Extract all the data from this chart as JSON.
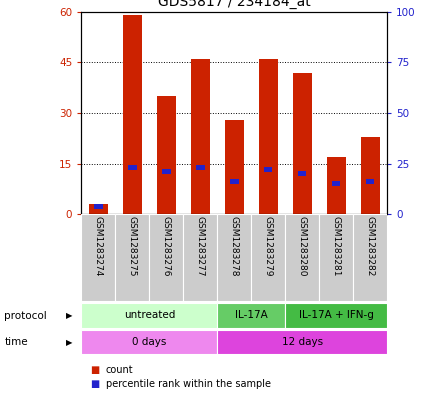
{
  "title": "GDS5817 / 234184_at",
  "samples": [
    "GSM1283274",
    "GSM1283275",
    "GSM1283276",
    "GSM1283277",
    "GSM1283278",
    "GSM1283279",
    "GSM1283280",
    "GSM1283281",
    "GSM1283282"
  ],
  "counts": [
    3,
    59,
    35,
    46,
    28,
    46,
    42,
    17,
    23
  ],
  "percentile_ranks": [
    4,
    23,
    21,
    23,
    16,
    22,
    20,
    15,
    16
  ],
  "ylim_left": [
    0,
    60
  ],
  "ylim_right": [
    0,
    100
  ],
  "yticks_left": [
    0,
    15,
    30,
    45,
    60
  ],
  "yticks_right": [
    0,
    25,
    50,
    75,
    100
  ],
  "bar_color": "#cc2200",
  "percentile_color": "#2222cc",
  "bar_width": 0.55,
  "protocol_groups": [
    {
      "label": "untreated",
      "samples": [
        0,
        1,
        2,
        3
      ],
      "color": "#ccffcc"
    },
    {
      "label": "IL-17A",
      "samples": [
        4,
        5
      ],
      "color": "#66cc66"
    },
    {
      "label": "IL-17A + IFN-g",
      "samples": [
        6,
        7,
        8
      ],
      "color": "#44bb44"
    }
  ],
  "time_groups": [
    {
      "label": "0 days",
      "samples": [
        0,
        1,
        2,
        3
      ],
      "color": "#ee88ee"
    },
    {
      "label": "12 days",
      "samples": [
        4,
        5,
        6,
        7,
        8
      ],
      "color": "#dd44dd"
    }
  ],
  "sample_row_color": "#cccccc",
  "legend_count_color": "#cc2200",
  "legend_percentile_color": "#2222cc",
  "title_fontsize": 10,
  "axis_label_color_left": "#cc2200",
  "axis_label_color_right": "#2222cc"
}
